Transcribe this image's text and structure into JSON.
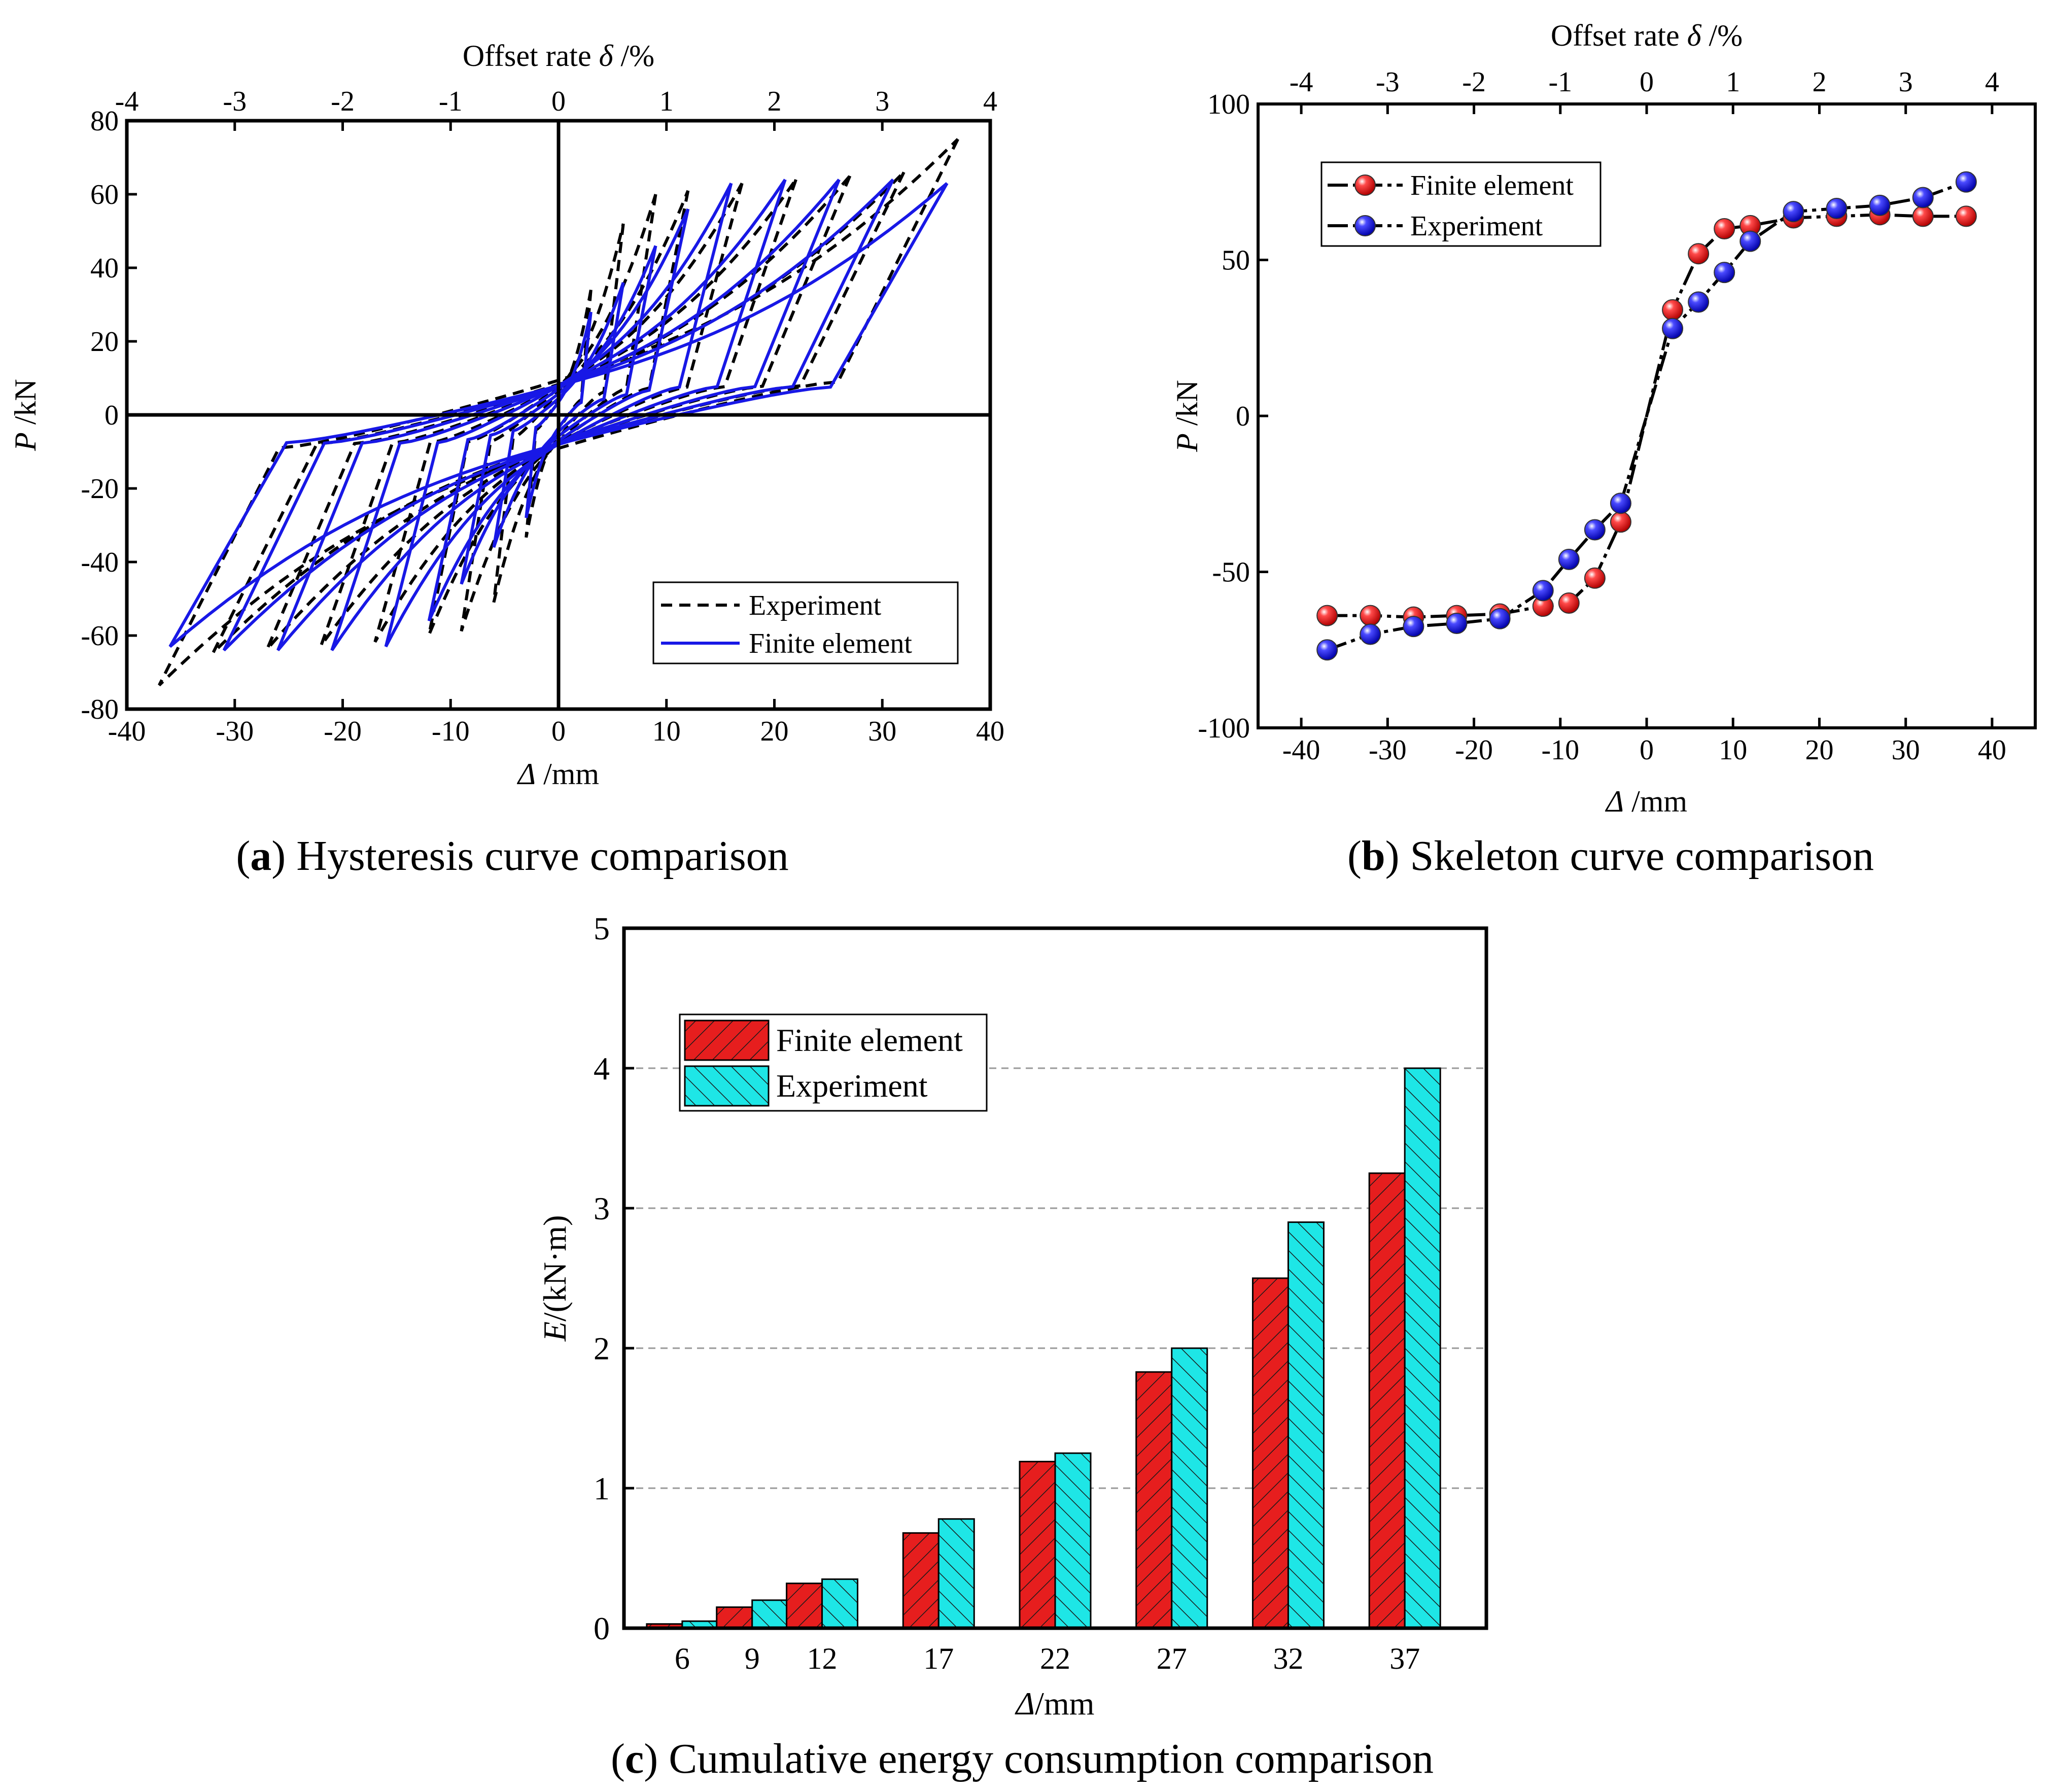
{
  "figure_captions": {
    "a": {
      "letter": "a",
      "text": " Hysteresis curve comparison"
    },
    "b": {
      "letter": "b",
      "text": " Skeleton curve comparison"
    },
    "c": {
      "letter": "c",
      "text": " Cumulative energy consumption comparison"
    }
  },
  "chart_data": [
    {
      "id": "a",
      "type": "line",
      "title": "Hysteresis curve comparison",
      "xlabel": "Δ /mm",
      "ylabel": "P /kN",
      "top_axis_label": "Offset rate δ /%",
      "xlim": [
        -40,
        40
      ],
      "ylim": [
        -80,
        80
      ],
      "xticks": [
        -40,
        -30,
        -20,
        -10,
        0,
        10,
        20,
        30,
        40
      ],
      "yticks": [
        -80,
        -60,
        -40,
        -20,
        0,
        20,
        40,
        60,
        80
      ],
      "top_ticks": [
        -4,
        -3,
        -2,
        -1,
        0,
        1,
        2,
        3,
        4
      ],
      "legend": {
        "position": "bottom-right",
        "entries": [
          "Experiment",
          "Finite element"
        ]
      },
      "series": [
        {
          "name": "Experiment",
          "style": "dashed",
          "color": "#000000",
          "amplitudes": [
            3,
            6,
            9,
            12,
            17,
            22,
            27,
            32,
            37
          ],
          "peaks": [
            34,
            52,
            60,
            61,
            63,
            64,
            65,
            66,
            75
          ]
        },
        {
          "name": "Finite element",
          "style": "solid",
          "color": "#1818e6",
          "amplitudes": [
            3,
            6,
            9,
            12,
            16,
            21,
            26,
            31,
            36
          ],
          "peaks": [
            28,
            36,
            46,
            56,
            63,
            64,
            64,
            64,
            63
          ]
        }
      ]
    },
    {
      "id": "b",
      "type": "line",
      "title": "Skeleton curve comparison",
      "xlabel": "Δ /mm",
      "ylabel": "P /kN",
      "top_axis_label": "Offset rate δ /%",
      "xlim": [
        -45,
        45
      ],
      "ylim": [
        -100,
        100
      ],
      "xticks": [
        -40,
        -30,
        -20,
        -10,
        0,
        10,
        20,
        30,
        40
      ],
      "yticks": [
        -100,
        -50,
        0,
        50,
        100
      ],
      "top_ticks": [
        -4,
        -3,
        -2,
        -1,
        0,
        1,
        2,
        3,
        4
      ],
      "legend": {
        "position": "top-left",
        "entries": [
          "Finite element",
          "Experiment"
        ]
      },
      "x": [
        -37,
        -32,
        -27,
        -22,
        -17,
        -12,
        -9,
        -6,
        -3,
        3,
        6,
        9,
        12,
        17,
        22,
        27,
        32,
        37
      ],
      "series": [
        {
          "name": "Finite element",
          "color": "#e8202a",
          "values": [
            -64,
            -64,
            -64.5,
            -64,
            -63.5,
            -61,
            -60,
            -52,
            -34,
            34,
            52,
            60,
            61,
            63.5,
            64,
            64.5,
            64,
            64
          ]
        },
        {
          "name": "Experiment",
          "color": "#2020e0",
          "values": [
            -75,
            -70,
            -67.5,
            -66.5,
            -65,
            -56,
            -46,
            -36.5,
            -28,
            28,
            36.5,
            46,
            56,
            65.5,
            66.5,
            67.5,
            70,
            75
          ]
        }
      ]
    },
    {
      "id": "c",
      "type": "bar",
      "title": "Cumulative energy consumption comparison",
      "xlabel": "Δ/mm",
      "ylabel": "E/(kN·m)",
      "ylim": [
        0,
        5
      ],
      "yticks": [
        0,
        1,
        2,
        3,
        4,
        5
      ],
      "grid": true,
      "legend": {
        "position": "top-left",
        "entries": [
          "Finite element",
          "Experiment"
        ]
      },
      "categories": [
        "6",
        "9",
        "12",
        "17",
        "22",
        "27",
        "32",
        "37"
      ],
      "series": [
        {
          "name": "Finite element",
          "color": "#e61e1e",
          "values": [
            0.03,
            0.15,
            0.32,
            0.68,
            1.19,
            1.83,
            2.5,
            3.25
          ]
        },
        {
          "name": "Experiment",
          "color": "#1ee6e6",
          "values": [
            0.05,
            0.2,
            0.35,
            0.78,
            1.25,
            2.0,
            2.9,
            4.0
          ]
        }
      ]
    }
  ]
}
